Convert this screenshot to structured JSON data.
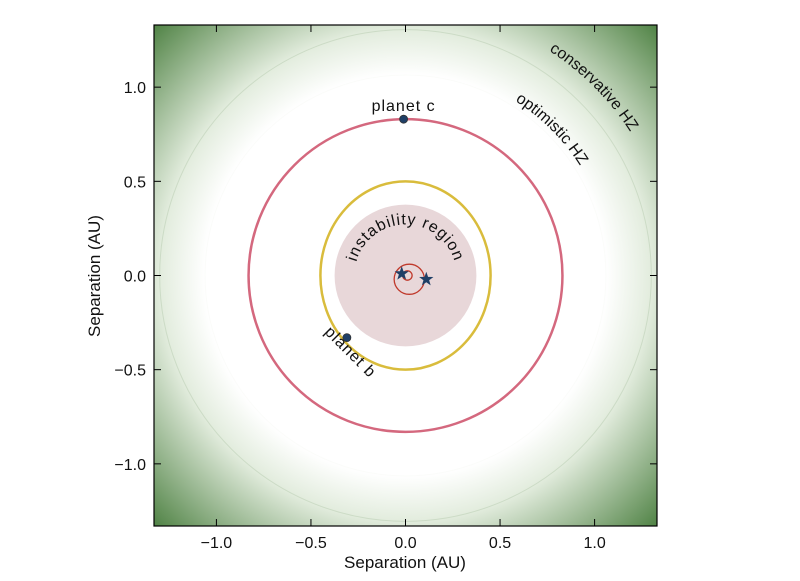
{
  "chart_data": {
    "type": "orbit",
    "xlabel": "Separation (AU)",
    "ylabel": "Separation (AU)",
    "xlim": [
      -1.33,
      1.33
    ],
    "ylim": [
      -1.33,
      1.33
    ],
    "xticks": [
      {
        "value": -1.0,
        "label": "−1.0"
      },
      {
        "value": -0.5,
        "label": "−0.5"
      },
      {
        "value": 0.0,
        "label": "0.0"
      },
      {
        "value": 0.5,
        "label": "0.5"
      },
      {
        "value": 1.0,
        "label": "1.0"
      }
    ],
    "yticks": [
      {
        "value": -1.0,
        "label": "−1.0"
      },
      {
        "value": -0.5,
        "label": "−0.5"
      },
      {
        "value": 0.0,
        "label": "0.0"
      },
      {
        "value": 0.5,
        "label": "0.5"
      },
      {
        "value": 1.0,
        "label": "1.0"
      }
    ],
    "habitable_zones": [
      {
        "name": "optimistic HZ",
        "inner": 1.06,
        "color": "#e2ecdd"
      },
      {
        "name": "conservative HZ",
        "inner": 1.3,
        "color": "#4f8244"
      }
    ],
    "instability_region": {
      "name": "instability region",
      "r": 0.375,
      "color": "#e8d7d9"
    },
    "orbits": [
      {
        "cx": 0.0,
        "cy": 0.0,
        "rx": 0.83,
        "ry": 0.83,
        "color": "#d4687e"
      },
      {
        "cx": 0.0,
        "cy": 0.0,
        "rx": 0.45,
        "ry": 0.5,
        "color": "#d9bc3c"
      },
      {
        "cx": 0.02,
        "cy": -0.02,
        "rx": 0.08,
        "ry": 0.08,
        "color": "#c0392b"
      },
      {
        "cx": 0.01,
        "cy": 0.0,
        "rx": 0.025,
        "ry": 0.025,
        "color": "#c0392b"
      }
    ],
    "planets": [
      {
        "name": "planet c",
        "x": -0.01,
        "y": 0.83,
        "color": "#1f3f66"
      },
      {
        "name": "planet b",
        "x": -0.31,
        "y": -0.33,
        "color": "#1f3f66"
      }
    ],
    "stars": [
      {
        "x": -0.02,
        "y": 0.01
      },
      {
        "x": 0.11,
        "y": -0.02
      }
    ],
    "star_color": "#1f3f66"
  }
}
